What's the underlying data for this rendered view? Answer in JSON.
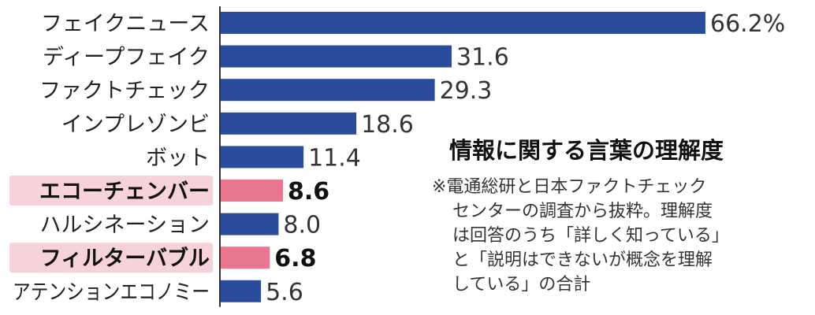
{
  "chart_data": {
    "type": "bar",
    "orientation": "horizontal",
    "title": "情報に関する言葉の理解度",
    "note_lines": [
      "※電通総研と日本ファクトチェック",
      "センターの調査から抜粋。理解度",
      "は回答のうち「詳しく知っている」",
      "と「説明はできないが概念を理解",
      "している」の合計"
    ],
    "categories": [
      "フェイクニュース",
      "ディープフェイク",
      "ファクトチェック",
      "インプレゾンビ",
      "ボット",
      "エコーチェンバー",
      "ハルシネーション",
      "フィルターバブル",
      "アテンションエコノミー"
    ],
    "values": [
      66.2,
      31.6,
      29.3,
      18.6,
      11.4,
      8.6,
      8.0,
      6.8,
      5.6
    ],
    "value_labels": [
      "66.2%",
      "31.6",
      "29.3",
      "18.6",
      "11.4",
      "8.6",
      "8.0",
      "6.8",
      "5.6"
    ],
    "highlighted": [
      "エコーチェンバー",
      "フィルターバブル"
    ],
    "colors": {
      "bar": "#2b4b9b",
      "bar_highlight": "#e8768f",
      "label_highlight_bg": "#f6d2da"
    },
    "xlim": [
      0,
      66.2
    ],
    "grid": false,
    "legend": "none"
  }
}
